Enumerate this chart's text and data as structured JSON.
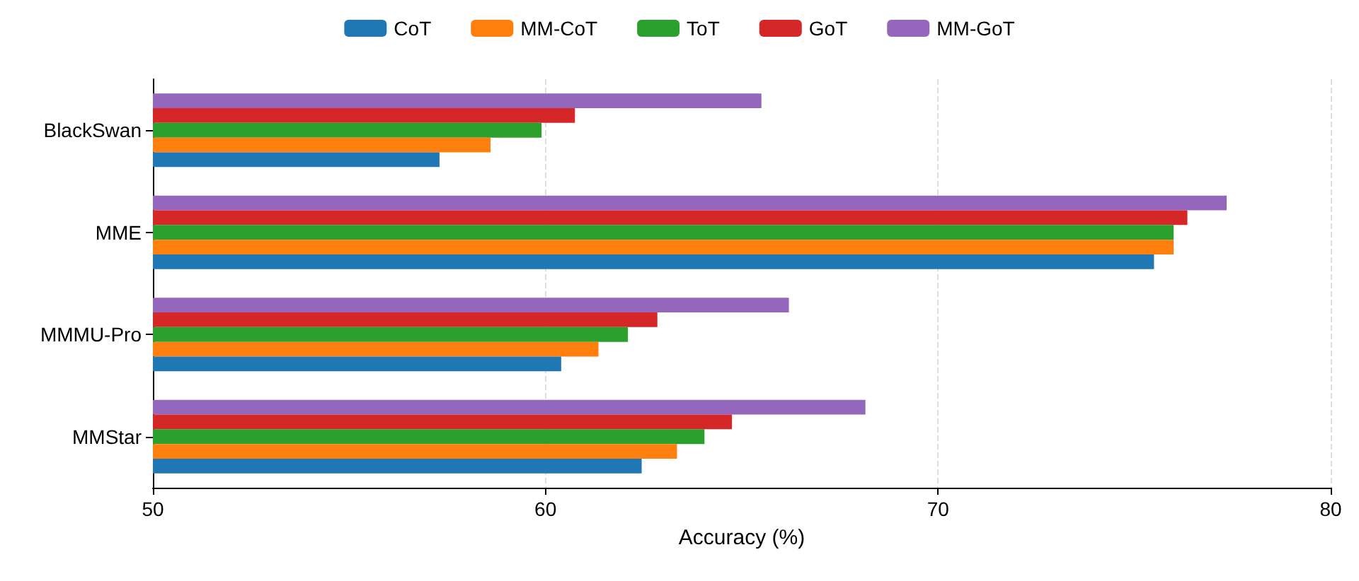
{
  "chart_data": {
    "type": "bar",
    "orientation": "horizontal",
    "xlabel": "Accuracy (%)",
    "categories": [
      "BlackSwan",
      "MME",
      "MMMU-Pro",
      "MMStar"
    ],
    "series": [
      {
        "name": "CoT",
        "color": "#1f77b4",
        "values": [
          57.3,
          75.5,
          60.4,
          62.45
        ]
      },
      {
        "name": "MM-CoT",
        "color": "#ff7f0e",
        "values": [
          58.6,
          76.0,
          61.35,
          63.35
        ]
      },
      {
        "name": "ToT",
        "color": "#2ca02c",
        "values": [
          59.9,
          76.0,
          62.1,
          64.05
        ]
      },
      {
        "name": "GoT",
        "color": "#d62728",
        "values": [
          60.75,
          76.35,
          62.85,
          64.75
        ]
      },
      {
        "name": "MM-GoT",
        "color": "#9467bd",
        "values": [
          65.5,
          77.35,
          66.2,
          68.15
        ]
      }
    ],
    "xlim": [
      50,
      80
    ],
    "xticks": [
      50,
      60,
      70,
      80
    ],
    "grid": "x",
    "legend": "top"
  }
}
